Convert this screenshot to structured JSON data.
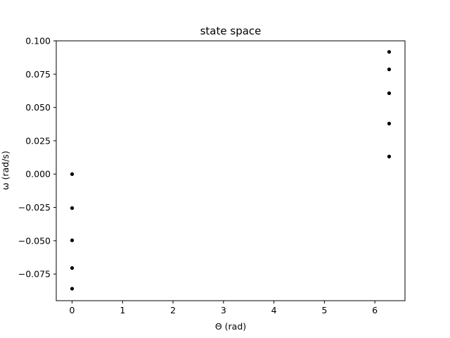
{
  "chart_data": {
    "type": "scatter",
    "title": "state space",
    "xlabel": "Θ (rad)",
    "ylabel": "ω (rad/s)",
    "xlim": [
      -0.314,
      6.597
    ],
    "ylim": [
      -0.095,
      0.1
    ],
    "x_ticks": [
      0,
      1,
      2,
      3,
      4,
      5,
      6
    ],
    "x_tick_labels": [
      "0",
      "1",
      "2",
      "3",
      "4",
      "5",
      "6"
    ],
    "y_ticks": [
      -0.075,
      -0.05,
      -0.025,
      0.0,
      0.025,
      0.05,
      0.075,
      0.1
    ],
    "y_tick_labels": [
      "−0.075",
      "−0.050",
      "−0.025",
      "0.000",
      "0.025",
      "0.050",
      "0.075",
      "0.100"
    ],
    "grid": false,
    "marker_color": "#000000",
    "points": [
      {
        "x": 0.0,
        "y": 0.0
      },
      {
        "x": 0.0,
        "y": -0.0255
      },
      {
        "x": 0.0,
        "y": -0.0497
      },
      {
        "x": 0.0,
        "y": -0.0705
      },
      {
        "x": 0.0,
        "y": -0.086
      },
      {
        "x": 6.283,
        "y": 0.0917
      },
      {
        "x": 6.283,
        "y": 0.0786
      },
      {
        "x": 6.283,
        "y": 0.0607
      },
      {
        "x": 6.283,
        "y": 0.0379
      },
      {
        "x": 6.283,
        "y": 0.0132
      }
    ]
  }
}
